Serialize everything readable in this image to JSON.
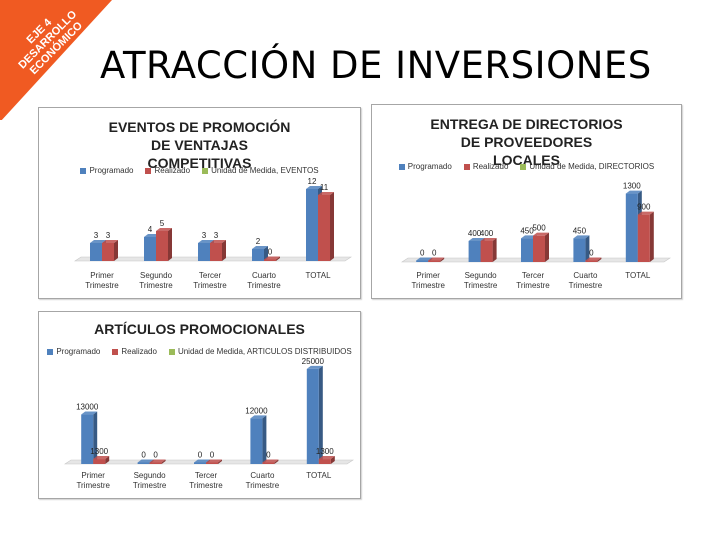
{
  "slide": {
    "title": "ATRACCIÓN DE INVERSIONES",
    "ribbon_text": [
      "EJE 4",
      "DESARROLLO",
      "ECONÓMICO"
    ],
    "ribbon_color": "#f05a22"
  },
  "colors": {
    "programado": "#4f81bd",
    "realizado": "#c0504d",
    "unidad": "#9bbb59"
  },
  "chart_data": [
    {
      "type": "bar",
      "title": "EVENTOS DE PROMOCIÓN DE VENTAJAS COMPETITIVAS",
      "categories": [
        [
          "Primer",
          "Trimestre"
        ],
        [
          "Segundo",
          "Trimestre"
        ],
        [
          "Tercer",
          "Trimestre"
        ],
        [
          "Cuarto",
          "Trimestre"
        ],
        [
          "TOTAL"
        ]
      ],
      "series": [
        {
          "name": "Programado",
          "values": [
            3,
            4,
            3,
            2,
            12
          ],
          "labels": [
            "3",
            "4",
            "3",
            "2",
            "12"
          ]
        },
        {
          "name": "Realizado",
          "values": [
            3,
            5,
            3,
            0,
            11
          ],
          "labels": [
            "3",
            "5",
            "3",
            "0",
            "11"
          ]
        },
        {
          "name": "Unidad de Medida, EVENTOS",
          "values": [
            0,
            0,
            0,
            0,
            0
          ],
          "labels": []
        }
      ],
      "ylim": [
        0,
        12.5
      ],
      "legend_position": "top"
    },
    {
      "type": "bar",
      "title": "ENTREGA DE DIRECTORIOS DE PROVEEDORES LOCALES",
      "categories": [
        [
          "Primer",
          "Trimestre"
        ],
        [
          "Segundo",
          "Trimestre"
        ],
        [
          "Tercer",
          "Trimestre"
        ],
        [
          "Cuarto",
          "Trimestre"
        ],
        [
          "TOTAL"
        ]
      ],
      "series": [
        {
          "name": "Programado",
          "values": [
            0,
            400,
            450,
            450,
            1300
          ],
          "labels": [
            "0",
            "400",
            "450",
            "450",
            "1300"
          ]
        },
        {
          "name": "Realizado",
          "values": [
            0,
            400,
            500,
            0,
            900
          ],
          "labels": [
            "0",
            "400",
            "500",
            "0",
            "900"
          ]
        },
        {
          "name": "Unidad de Medida, DIRECTORIOS",
          "values": [
            0,
            0,
            0,
            0,
            0
          ],
          "labels": []
        }
      ],
      "ylim": [
        0,
        1330
      ],
      "legend_position": "top"
    },
    {
      "type": "bar",
      "title": "ARTÍCULOS PROMOCIONALES",
      "categories": [
        [
          "Primer",
          "Trimestre"
        ],
        [
          "Segundo",
          "Trimestre"
        ],
        [
          "Tercer",
          "Trimestre"
        ],
        [
          "Cuarto",
          "Trimestre"
        ],
        [
          "TOTAL"
        ]
      ],
      "series": [
        {
          "name": "Programado",
          "values": [
            13000,
            0,
            0,
            12000,
            25000
          ],
          "labels": [
            "13000",
            "0",
            "0",
            "12000",
            "25000"
          ]
        },
        {
          "name": "Realizado",
          "values": [
            1300,
            0,
            0,
            0,
            1300
          ],
          "labels": [
            "1300",
            "0",
            "0",
            "0",
            "1300"
          ]
        },
        {
          "name": "Unidad de Medida, ARTICULOS DISTRIBUIDOS",
          "values": [
            0,
            0,
            0,
            0,
            0
          ],
          "labels": []
        }
      ],
      "ylim": [
        0,
        25500
      ],
      "legend_position": "top"
    }
  ]
}
